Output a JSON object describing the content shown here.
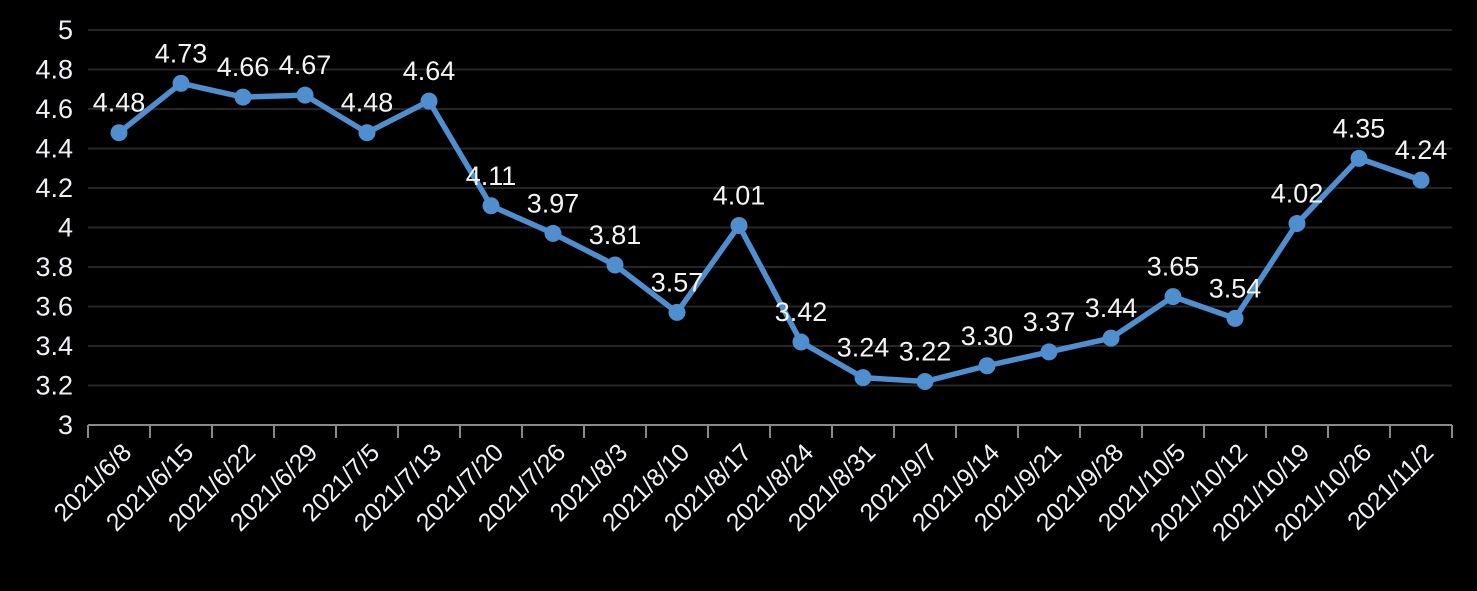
{
  "chart_data": {
    "type": "line",
    "title": "",
    "xlabel": "",
    "ylabel": "",
    "categories": [
      "2021/6/8",
      "2021/6/15",
      "2021/6/22",
      "2021/6/29",
      "2021/7/5",
      "2021/7/13",
      "2021/7/20",
      "2021/7/26",
      "2021/8/3",
      "2021/8/10",
      "2021/8/17",
      "2021/8/24",
      "2021/8/31",
      "2021/9/7",
      "2021/9/14",
      "2021/9/21",
      "2021/9/28",
      "2021/10/5",
      "2021/10/12",
      "2021/10/19",
      "2021/10/26",
      "2021/11/2"
    ],
    "series": [
      {
        "name": "series-1",
        "values": [
          4.48,
          4.73,
          4.66,
          4.67,
          4.48,
          4.64,
          4.11,
          3.97,
          3.81,
          3.57,
          4.01,
          3.42,
          3.24,
          3.22,
          3.3,
          3.37,
          3.44,
          3.65,
          3.54,
          4.02,
          4.35,
          4.24
        ],
        "data_labels": [
          "4.48",
          "4.73",
          "4.66",
          "4.67",
          "4.48",
          "4.64",
          "4.11",
          "3.97",
          "3.81",
          "3.57",
          "4.01",
          "3.42",
          "3.24",
          "3.22",
          "3.30",
          "3.37",
          "3.44",
          "3.65",
          "3.54",
          "4.02",
          "4.35",
          "4.24"
        ]
      }
    ],
    "ylim": [
      3,
      5
    ],
    "ytick_labels": [
      "3",
      "3.2",
      "3.4",
      "3.6",
      "3.8",
      "4",
      "4.2",
      "4.4",
      "4.6",
      "4.8",
      "5"
    ],
    "grid": true,
    "legend_position": "none",
    "colors": {
      "background": "#000000",
      "line": "#4f8fd0",
      "marker": "#4f8fd0",
      "gridline": "#262626",
      "axis": "#8a8a8a",
      "value_label_text": "#f4f4f4",
      "tick_label_text": "#eef1f6"
    }
  }
}
